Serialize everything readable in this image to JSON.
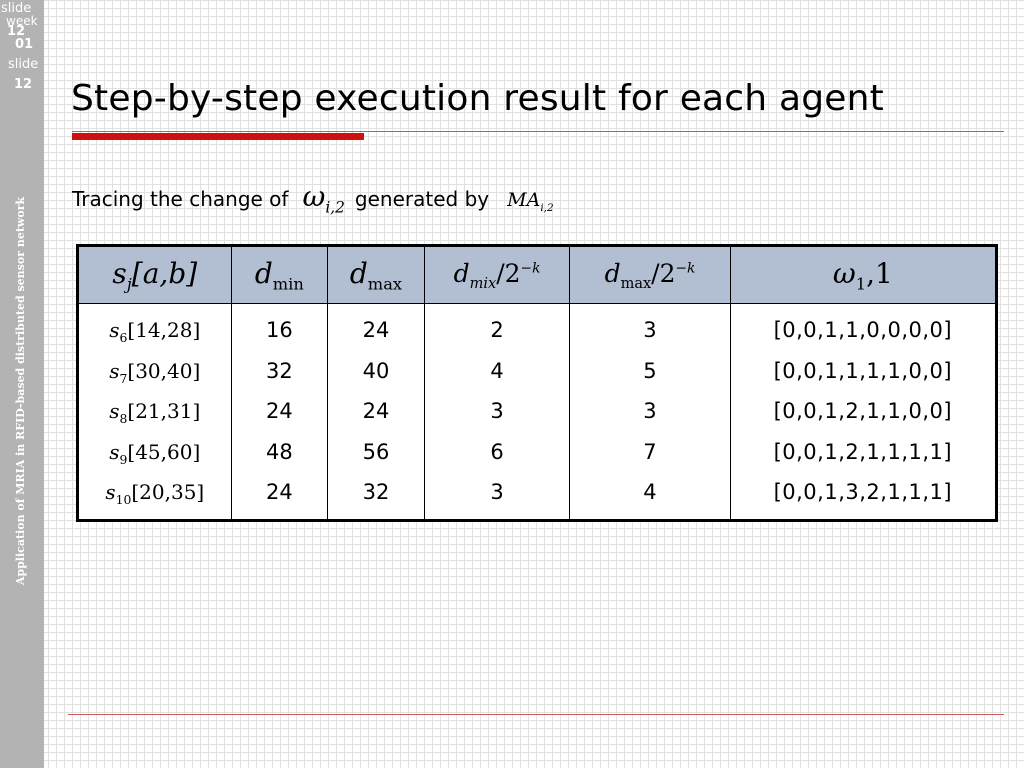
{
  "sidebar": {
    "slide_label_1": "slide",
    "week_label": "week",
    "week_number": "12",
    "slide_number_short": "01",
    "slide_label_2": "slide",
    "slide_number": "12",
    "caption": "Application of MRIA in RFID-based distributed sensor network"
  },
  "title": "Step-by-step execution result for each agent",
  "subtitle": {
    "prefix": "Tracing the change of",
    "omega_symbol": "ω",
    "omega_subscript": "i,2",
    "middle": "generated by",
    "ma_symbol": "MA",
    "ma_subscript": "i,2"
  },
  "table": {
    "headers": [
      {
        "main": "s",
        "sub": "j",
        "suffix": "[a,b]"
      },
      {
        "main": "d",
        "sub": "min"
      },
      {
        "main": "d",
        "sub": "max"
      },
      {
        "main": "d",
        "sub": "mix",
        "suffix": "/2",
        "sup": "−k"
      },
      {
        "main": "d",
        "sub": "max",
        "suffix": "/2",
        "sup": "−k"
      },
      {
        "main": "ω",
        "sub": "1",
        "suffix": ",1"
      }
    ],
    "rows": [
      {
        "s_index": "6",
        "interval": "[14,28]",
        "dmin": "16",
        "dmax": "24",
        "dmix_k": "2",
        "dmax_k": "3",
        "omega": "[0,0,1,1,0,0,0,0]"
      },
      {
        "s_index": "7",
        "interval": "[30,40]",
        "dmin": "32",
        "dmax": "40",
        "dmix_k": "4",
        "dmax_k": "5",
        "omega": "[0,0,1,1,1,1,0,0]"
      },
      {
        "s_index": "8",
        "interval": "[21,31]",
        "dmin": "24",
        "dmax": "24",
        "dmix_k": "3",
        "dmax_k": "3",
        "omega": "[0,0,1,2,1,1,0,0]"
      },
      {
        "s_index": "9",
        "interval": "[45,60]",
        "dmin": "48",
        "dmax": "56",
        "dmix_k": "6",
        "dmax_k": "7",
        "omega": "[0,0,1,2,1,1,1,1]"
      },
      {
        "s_index": "10",
        "interval": "[20,35]",
        "dmin": "24",
        "dmax": "32",
        "dmix_k": "3",
        "dmax_k": "4",
        "omega": "[0,0,1,3,2,1,1,1]"
      }
    ]
  },
  "colors": {
    "accent_red": "#d01010",
    "rule_red": "#c75a5a",
    "header_blue": "#b2bfd3",
    "sidebar_gray": "#b3b3b3"
  }
}
